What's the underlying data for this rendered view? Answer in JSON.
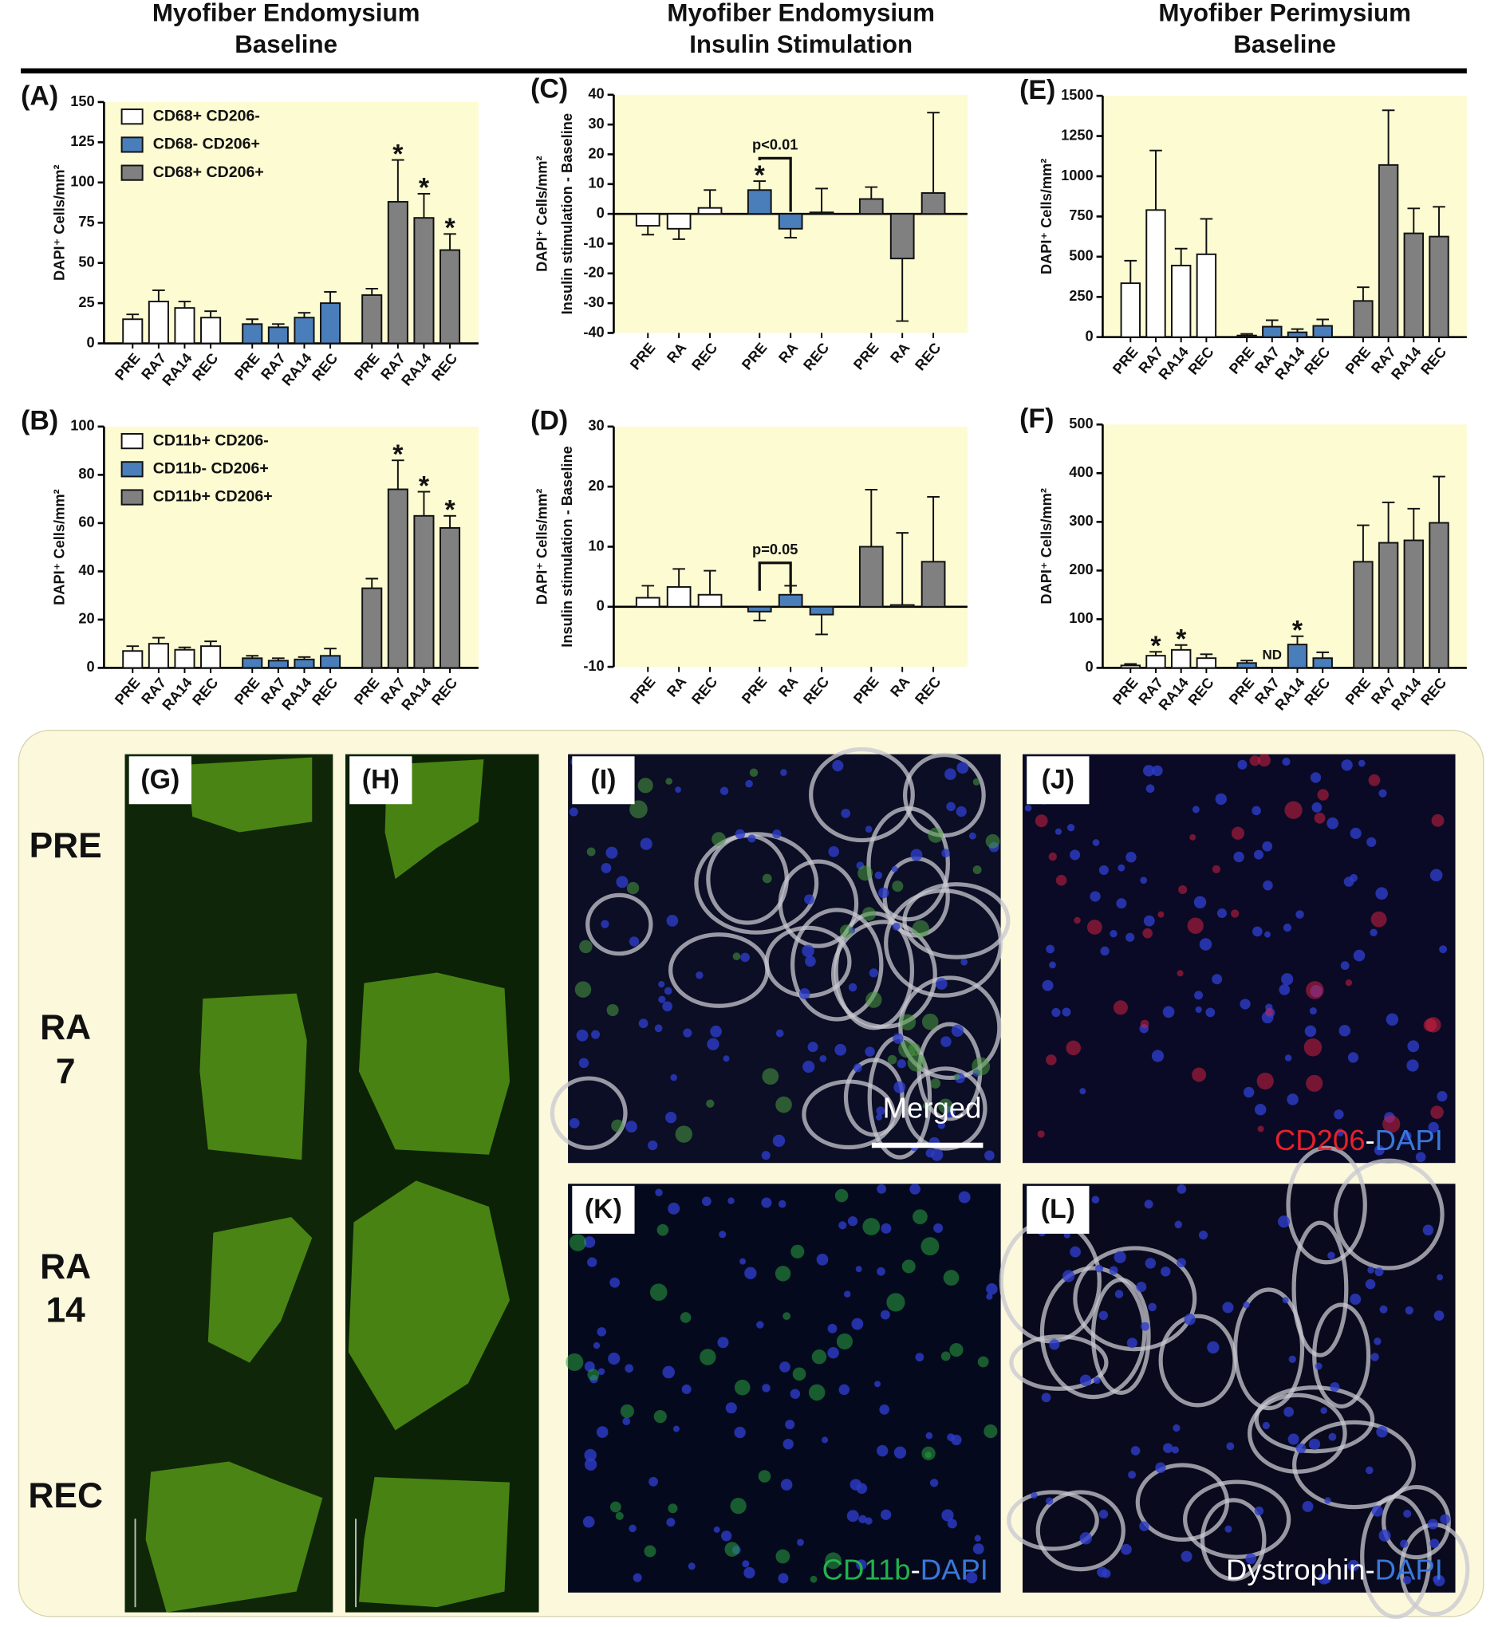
{
  "headers": [
    [
      "Myofiber Endomysium",
      "Baseline"
    ],
    [
      "Myofiber Endomysium",
      "Insulin Stimulation"
    ],
    [
      "Myofiber Perimysium",
      "Baseline"
    ]
  ],
  "chart_data": [
    {
      "type": "bar",
      "panel": "(A)",
      "ylabel": "DAPI⁺ Cells/mm²",
      "categories": [
        "PRE",
        "RA7",
        "RA14",
        "REC"
      ],
      "ylim": [
        0,
        150
      ],
      "yticks": [
        0,
        25,
        50,
        75,
        100,
        125,
        150
      ],
      "legend": "upper left",
      "series": [
        {
          "name": "CD68+ CD206-",
          "color": "#ffffff",
          "values": [
            15,
            26,
            22,
            16
          ],
          "errors": [
            3,
            7,
            4,
            4
          ]
        },
        {
          "name": "CD68- CD206+",
          "color": "#4a7ebb",
          "values": [
            12,
            10,
            16,
            25
          ],
          "errors": [
            3,
            2,
            3,
            7
          ]
        },
        {
          "name": "CD68+ CD206+",
          "color": "#808080",
          "values": [
            30,
            88,
            78,
            58
          ],
          "errors": [
            4,
            26,
            15,
            10
          ],
          "annotations": [
            {
              "index": 1,
              "text": "*"
            },
            {
              "index": 2,
              "text": "*"
            },
            {
              "index": 3,
              "text": "*"
            }
          ]
        }
      ]
    },
    {
      "type": "bar",
      "panel": "(B)",
      "ylabel": "DAPI⁺ Cells/mm²",
      "categories": [
        "PRE",
        "RA7",
        "RA14",
        "REC"
      ],
      "ylim": [
        0,
        100
      ],
      "yticks": [
        0,
        20,
        40,
        60,
        80,
        100
      ],
      "legend": "upper left",
      "series": [
        {
          "name": "CD11b+ CD206-",
          "color": "#ffffff",
          "values": [
            7,
            10,
            7.5,
            9
          ],
          "errors": [
            2,
            2.5,
            1,
            2
          ]
        },
        {
          "name": "CD11b- CD206+",
          "color": "#4a7ebb",
          "values": [
            4,
            3,
            3.5,
            5
          ],
          "errors": [
            1,
            1,
            1,
            3
          ]
        },
        {
          "name": "CD11b+ CD206+",
          "color": "#808080",
          "values": [
            33,
            74,
            63,
            58
          ],
          "errors": [
            4,
            12,
            10,
            5
          ],
          "annotations": [
            {
              "index": 1,
              "text": "*"
            },
            {
              "index": 2,
              "text": "*"
            },
            {
              "index": 3,
              "text": "*"
            }
          ]
        }
      ]
    },
    {
      "type": "bar",
      "panel": "(C)",
      "ylabel": "DAPI⁺ Cells/mm²",
      "ylabel2": "Insulin stimulation - Baseline",
      "categories": [
        "PRE",
        "RA",
        "REC"
      ],
      "ylim": [
        -40,
        40
      ],
      "yticks": [
        -40,
        -30,
        -20,
        -10,
        0,
        10,
        20,
        30,
        40
      ],
      "brackets": [
        {
          "series": 1,
          "from": 0,
          "to": 1,
          "text": "p<0.01"
        }
      ],
      "series": [
        {
          "color": "#ffffff",
          "values": [
            -4,
            -5,
            2
          ],
          "errors": [
            3,
            3.5,
            6
          ]
        },
        {
          "color": "#4a7ebb",
          "values": [
            8,
            -5,
            0.5
          ],
          "errors": [
            3,
            3,
            8
          ],
          "annotations": [
            {
              "index": 0,
              "text": "*"
            }
          ]
        },
        {
          "color": "#808080",
          "values": [
            5,
            -15,
            7
          ],
          "errors": [
            4,
            21,
            27
          ]
        }
      ]
    },
    {
      "type": "bar",
      "panel": "(D)",
      "ylabel": "DAPI⁺ Cells/mm²",
      "ylabel2": "Insulin stimulation - Baseline",
      "categories": [
        "PRE",
        "RA",
        "REC"
      ],
      "ylim": [
        -10,
        30
      ],
      "yticks": [
        -10,
        0,
        10,
        20,
        30
      ],
      "brackets": [
        {
          "series": 1,
          "from": 0,
          "to": 1,
          "text": "p=0.05"
        }
      ],
      "series": [
        {
          "color": "#ffffff",
          "values": [
            1.5,
            3.3,
            2
          ],
          "errors": [
            2,
            3,
            4
          ]
        },
        {
          "color": "#4a7ebb",
          "values": [
            -0.8,
            2,
            -1.3
          ],
          "errors": [
            1.5,
            1.5,
            3.3
          ]
        },
        {
          "color": "#808080",
          "values": [
            10,
            0.3,
            7.5
          ],
          "errors": [
            9.5,
            12,
            10.8
          ]
        }
      ]
    },
    {
      "type": "bar",
      "panel": "(E)",
      "ylabel": "DAPI⁺ Cells/mm²",
      "categories": [
        "PRE",
        "RA7",
        "RA14",
        "REC"
      ],
      "ylim": [
        0,
        1500
      ],
      "yticks": [
        0,
        250,
        500,
        750,
        1000,
        1250,
        1500
      ],
      "series": [
        {
          "color": "#ffffff",
          "values": [
            335,
            790,
            445,
            515
          ],
          "errors": [
            140,
            370,
            105,
            220
          ]
        },
        {
          "color": "#4a7ebb",
          "values": [
            10,
            65,
            30,
            70
          ],
          "errors": [
            10,
            40,
            20,
            40
          ]
        },
        {
          "color": "#808080",
          "values": [
            225,
            1070,
            645,
            625
          ],
          "errors": [
            85,
            340,
            155,
            185
          ]
        }
      ]
    },
    {
      "type": "bar",
      "panel": "(F)",
      "ylabel": "DAPI⁺ Cells/mm²",
      "categories": [
        "PRE",
        "RA7",
        "RA14",
        "REC"
      ],
      "ylim": [
        0,
        500
      ],
      "yticks": [
        0,
        100,
        200,
        300,
        400,
        500
      ],
      "series": [
        {
          "color": "#ffffff",
          "values": [
            5,
            25,
            37,
            20
          ],
          "errors": [
            3,
            8,
            10,
            8
          ],
          "annotations": [
            {
              "index": 1,
              "text": "*"
            },
            {
              "index": 2,
              "text": "*"
            }
          ]
        },
        {
          "color": "#4a7ebb",
          "values": [
            10,
            null,
            48,
            20
          ],
          "errors": [
            5,
            null,
            17,
            12
          ],
          "annotations": [
            {
              "index": 1,
              "text": "ND"
            },
            {
              "index": 2,
              "text": "*"
            }
          ]
        },
        {
          "color": "#808080",
          "values": [
            218,
            257,
            262,
            298
          ],
          "errors": [
            75,
            83,
            65,
            95
          ]
        }
      ]
    }
  ],
  "micrographs": {
    "row_labels": [
      [
        "PRE"
      ],
      [
        "RA",
        "7"
      ],
      [
        "RA",
        "14"
      ],
      [
        "REC"
      ]
    ],
    "panels": [
      {
        "label": "(G)"
      },
      {
        "label": "(H)"
      },
      {
        "label": "(I)",
        "caption": [
          {
            "text": "Merged",
            "color": "#ffffff"
          }
        ]
      },
      {
        "label": "(J)",
        "caption": [
          {
            "text": "CD206",
            "color": "#e8202a"
          },
          {
            "text": "-",
            "color": "#ffffff"
          },
          {
            "text": "DAPI",
            "color": "#3a78d8"
          }
        ]
      },
      {
        "label": "(K)",
        "caption": [
          {
            "text": "CD11b",
            "color": "#22b24c"
          },
          {
            "text": "-",
            "color": "#ffffff"
          },
          {
            "text": "DAPI",
            "color": "#3a78d8"
          }
        ]
      },
      {
        "label": "(L)",
        "caption": [
          {
            "text": "Dystrophin",
            "color": "#ffffff"
          },
          {
            "text": "-",
            "color": "#ffffff"
          },
          {
            "text": "DAPI",
            "color": "#3a78d8"
          }
        ]
      }
    ]
  }
}
